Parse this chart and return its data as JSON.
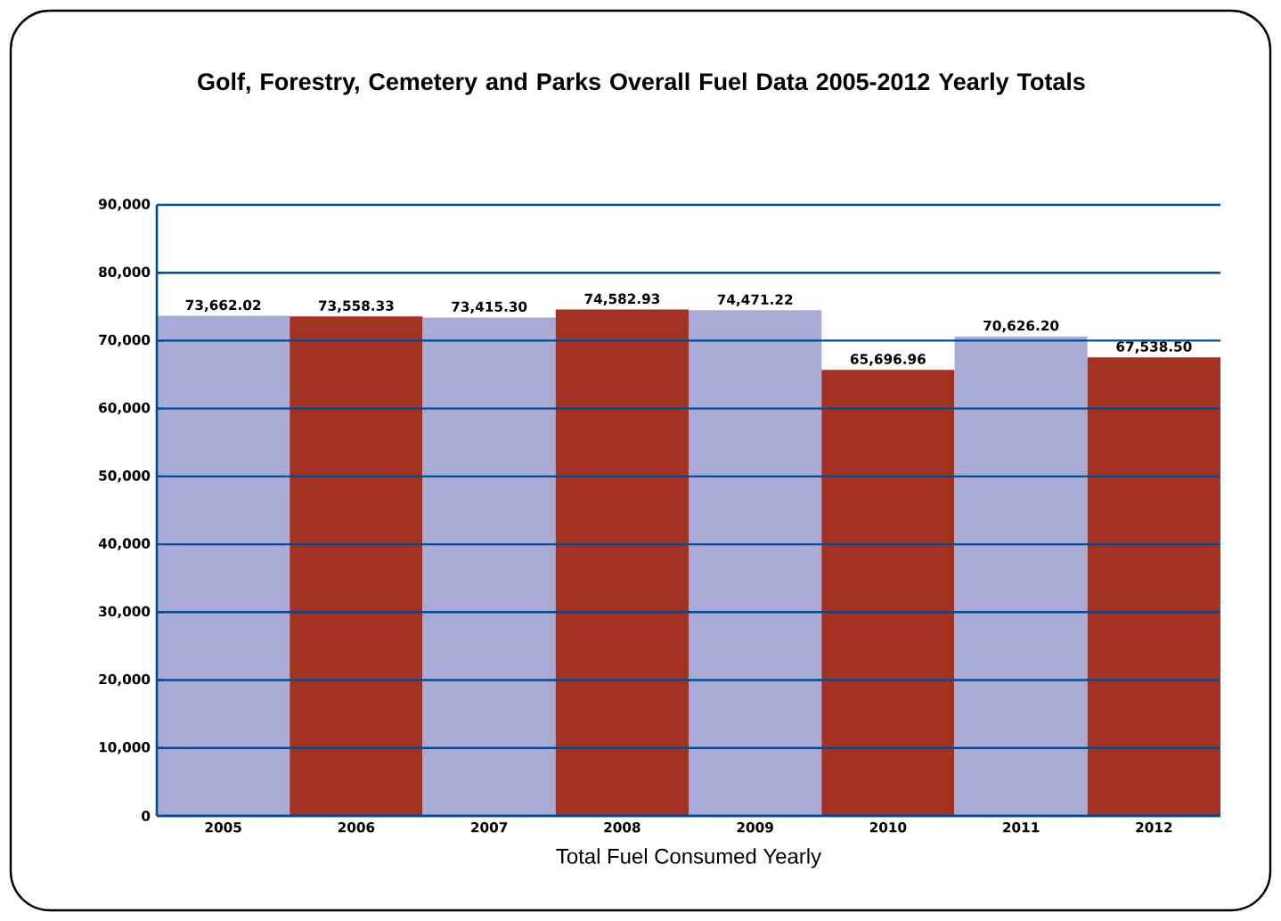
{
  "chart_data": {
    "type": "bar",
    "title": "Golf, Forestry, Cemetery and Parks Overall Fuel Data 2005-2012 Yearly Totals",
    "xlabel": "Total Fuel Consumed Yearly",
    "categories": [
      "2005",
      "2006",
      "2007",
      "2008",
      "2009",
      "2010",
      "2011",
      "2012"
    ],
    "values": [
      73662.02,
      73558.33,
      73415.3,
      74582.93,
      74471.22,
      65696.96,
      70626.2,
      67538.5
    ],
    "value_labels": [
      "73,662.02",
      "73,558.33",
      "73,415.30",
      "74,582.93",
      "74,471.22",
      "65,696.96",
      "70,626.20",
      "67,538.50"
    ],
    "colors": [
      "#aaaad6",
      "#a23322",
      "#aaaad6",
      "#a23322",
      "#aaaad6",
      "#a23322",
      "#aaaad6",
      "#a23322"
    ],
    "ylim": [
      0,
      90000
    ],
    "yticks": [
      {
        "value": 0,
        "label": "0"
      },
      {
        "value": 10000,
        "label": "10,000"
      },
      {
        "value": 20000,
        "label": "20,000"
      },
      {
        "value": 30000,
        "label": "30,000"
      },
      {
        "value": 40000,
        "label": "40,000"
      },
      {
        "value": 50000,
        "label": "50,000"
      },
      {
        "value": 60000,
        "label": "60,000"
      },
      {
        "value": 70000,
        "label": "70,000"
      },
      {
        "value": 80000,
        "label": "80,000"
      },
      {
        "value": 90000,
        "label": "90,000"
      }
    ],
    "grid": "y"
  }
}
